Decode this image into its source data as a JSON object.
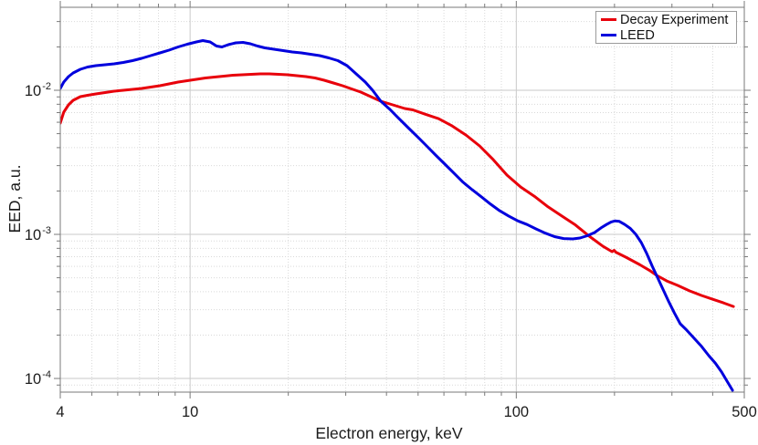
{
  "chart_data": {
    "type": "line",
    "title": "",
    "xlabel": "Electron energy, keV",
    "ylabel": "EED, a.u.",
    "x_scale": "log",
    "y_scale": "log",
    "xlim": [
      4,
      500
    ],
    "ylim": [
      8.04e-05,
      0.03767
    ],
    "grid": {
      "major": true,
      "minor": true
    },
    "legend_position": "top-right",
    "colors": {
      "red": "#e8000b",
      "blue": "#0000dd",
      "grid_major": "#c9c9c9",
      "grid_minor": "#d9d9d9",
      "spine": "#7a7a7a",
      "tick_text": "#1c1c1c"
    },
    "x_major_ticks": [
      {
        "value": 4,
        "label": "4"
      },
      {
        "value": 10,
        "label": "10"
      },
      {
        "value": 100,
        "label": "100"
      },
      {
        "value": 500,
        "label": "500"
      }
    ],
    "x_minor_ticks": [
      5,
      6,
      7,
      8,
      9,
      20,
      30,
      40,
      50,
      60,
      70,
      80,
      90,
      200,
      300,
      400
    ],
    "y_major_ticks": [
      {
        "value": 0.01,
        "mantissa": "10",
        "exponent": "-2"
      },
      {
        "value": 0.001,
        "mantissa": "10",
        "exponent": "-3"
      },
      {
        "value": 0.0001,
        "mantissa": "10",
        "exponent": "-4"
      }
    ],
    "y_minor_ticks": [
      0.03,
      0.02,
      0.009,
      0.008,
      0.007,
      0.006,
      0.005,
      0.004,
      0.003,
      0.002,
      0.0009,
      0.0008,
      0.0007,
      0.0006,
      0.0005,
      0.0004,
      0.0003,
      0.0002,
      9e-05
    ],
    "series": [
      {
        "name": "Decay Experiment",
        "color": "#e8000b",
        "points": [
          [
            4.0,
            0.00592
          ],
          [
            4.1,
            0.00705
          ],
          [
            4.24,
            0.00792
          ],
          [
            4.38,
            0.00852
          ],
          [
            4.61,
            0.00903
          ],
          [
            4.85,
            0.00923
          ],
          [
            5.14,
            0.00943
          ],
          [
            5.49,
            0.00964
          ],
          [
            5.85,
            0.00986
          ],
          [
            6.24,
            0.01
          ],
          [
            6.66,
            0.01015
          ],
          [
            7.1,
            0.0103
          ],
          [
            7.57,
            0.01052
          ],
          [
            8.08,
            0.01076
          ],
          [
            8.62,
            0.01107
          ],
          [
            9.19,
            0.0114
          ],
          [
            9.8,
            0.01165
          ],
          [
            10.45,
            0.01191
          ],
          [
            11.15,
            0.01217
          ],
          [
            11.89,
            0.01235
          ],
          [
            12.69,
            0.01254
          ],
          [
            13.53,
            0.01272
          ],
          [
            14.43,
            0.01281
          ],
          [
            15.39,
            0.01291
          ],
          [
            16.42,
            0.013
          ],
          [
            17.51,
            0.013
          ],
          [
            18.68,
            0.01291
          ],
          [
            19.92,
            0.01281
          ],
          [
            21.25,
            0.01263
          ],
          [
            22.66,
            0.01245
          ],
          [
            24.17,
            0.01217
          ],
          [
            25.78,
            0.01174
          ],
          [
            27.5,
            0.01124
          ],
          [
            29.33,
            0.01076
          ],
          [
            31.28,
            0.01022
          ],
          [
            33.37,
            0.00971
          ],
          [
            35.81,
            0.00903
          ],
          [
            38.44,
            0.0084
          ],
          [
            41.81,
            0.00792
          ],
          [
            45.5,
            0.00747
          ],
          [
            48.18,
            0.00731
          ],
          [
            52.4,
            0.00684
          ],
          [
            57.73,
            0.00636
          ],
          [
            63.6,
            0.00566
          ],
          [
            70.04,
            0.0049
          ],
          [
            77.16,
            0.00411
          ],
          [
            85.0,
            0.0033
          ],
          [
            93.64,
            0.00258
          ],
          [
            103.2,
            0.00213
          ],
          [
            113.6,
            0.00184
          ],
          [
            125.2,
            0.00155
          ],
          [
            137.9,
            0.00134
          ],
          [
            151.9,
            0.00116
          ],
          [
            167.3,
            0.000971
          ],
          [
            184.3,
            0.000827
          ],
          [
            196.6,
            0.000758
          ],
          [
            199.5,
            0.000775
          ],
          [
            202.0,
            0.000752
          ],
          [
            216.5,
            0.000695
          ],
          [
            238.4,
            0.000618
          ],
          [
            257.6,
            0.000558
          ],
          [
            269.5,
            0.000519
          ],
          [
            289.3,
            0.000475
          ],
          [
            312.6,
            0.000442
          ],
          [
            339.9,
            0.000405
          ],
          [
            369.6,
            0.000377
          ],
          [
            399.3,
            0.000355
          ],
          [
            431.4,
            0.000335
          ],
          [
            463.2,
            0.000316
          ]
        ]
      },
      {
        "name": "LEED",
        "color": "#0000dd",
        "points": [
          [
            4.0,
            0.0103
          ],
          [
            4.1,
            0.0114
          ],
          [
            4.24,
            0.01245
          ],
          [
            4.38,
            0.01319
          ],
          [
            4.61,
            0.01398
          ],
          [
            4.85,
            0.0145
          ],
          [
            5.14,
            0.01482
          ],
          [
            5.49,
            0.01504
          ],
          [
            5.85,
            0.01526
          ],
          [
            6.24,
            0.0156
          ],
          [
            6.66,
            0.01606
          ],
          [
            7.1,
            0.01665
          ],
          [
            7.57,
            0.0174
          ],
          [
            8.08,
            0.01818
          ],
          [
            8.62,
            0.01899
          ],
          [
            9.19,
            0.01998
          ],
          [
            9.8,
            0.02087
          ],
          [
            10.45,
            0.02164
          ],
          [
            10.94,
            0.02213
          ],
          [
            11.52,
            0.02164
          ],
          [
            12.05,
            0.02028
          ],
          [
            12.52,
            0.01998
          ],
          [
            13.1,
            0.02072
          ],
          [
            13.8,
            0.02133
          ],
          [
            14.53,
            0.02149
          ],
          [
            15.3,
            0.02102
          ],
          [
            16.1,
            0.02028
          ],
          [
            16.95,
            0.01969
          ],
          [
            18.08,
            0.01927
          ],
          [
            19.29,
            0.01885
          ],
          [
            20.57,
            0.01845
          ],
          [
            21.94,
            0.01818
          ],
          [
            23.4,
            0.01778
          ],
          [
            24.96,
            0.0174
          ],
          [
            26.62,
            0.01678
          ],
          [
            28.39,
            0.01606
          ],
          [
            30.28,
            0.01482
          ],
          [
            32.29,
            0.013
          ],
          [
            34.44,
            0.0114
          ],
          [
            36.27,
            0.01
          ],
          [
            38.44,
            0.0084
          ],
          [
            41.0,
            0.00736
          ],
          [
            43.7,
            0.00636
          ],
          [
            46.6,
            0.0055
          ],
          [
            49.8,
            0.00475
          ],
          [
            53.1,
            0.00411
          ],
          [
            56.6,
            0.00355
          ],
          [
            60.4,
            0.00307
          ],
          [
            64.4,
            0.00266
          ],
          [
            68.7,
            0.0023
          ],
          [
            73.3,
            0.00204
          ],
          [
            78.2,
            0.00182
          ],
          [
            83.4,
            0.00162
          ],
          [
            88.9,
            0.00146
          ],
          [
            94.8,
            0.00134
          ],
          [
            101.2,
            0.00124
          ],
          [
            107.9,
            0.00117
          ],
          [
            115.1,
            0.00109
          ],
          [
            122.8,
            0.00102
          ],
          [
            131.0,
            0.000964
          ],
          [
            139.7,
            0.000936
          ],
          [
            149.0,
            0.00093
          ],
          [
            156.8,
            0.000943
          ],
          [
            165.1,
            0.000978
          ],
          [
            173.8,
            0.00103
          ],
          [
            181.9,
            0.00111
          ],
          [
            189.0,
            0.00117
          ],
          [
            195.3,
            0.00122
          ],
          [
            200.4,
            0.00124
          ],
          [
            207.0,
            0.00123
          ],
          [
            215.1,
            0.00117
          ],
          [
            223.6,
            0.0011
          ],
          [
            232.4,
            0.001
          ],
          [
            241.6,
            0.000877
          ],
          [
            251.2,
            0.000736
          ],
          [
            261.2,
            0.0006
          ],
          [
            271.5,
            0.000497
          ],
          [
            282.3,
            0.000411
          ],
          [
            293.5,
            0.00034
          ],
          [
            305.0,
            0.000286
          ],
          [
            318.0,
            0.00024
          ],
          [
            333.4,
            0.000216
          ],
          [
            351.0,
            0.00019
          ],
          [
            369.6,
            0.000167
          ],
          [
            389.2,
            0.000144
          ],
          [
            407.2,
            0.000128
          ],
          [
            425.9,
            0.000111
          ],
          [
            442.7,
            9.57e-05
          ],
          [
            460.2,
            8.28e-05
          ]
        ]
      }
    ]
  }
}
